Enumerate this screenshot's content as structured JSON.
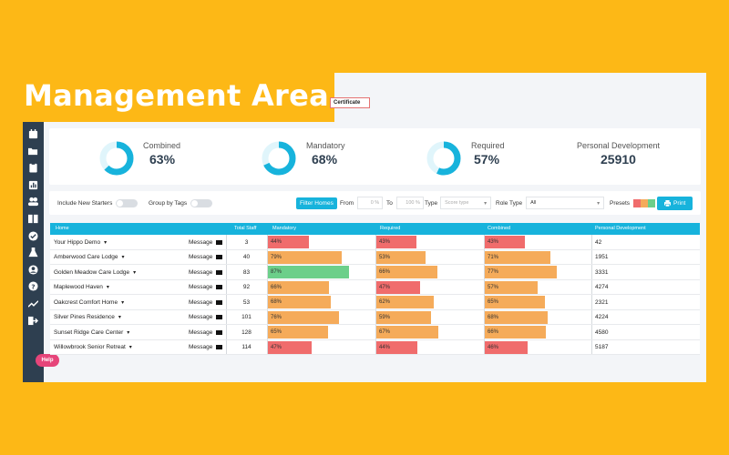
{
  "page": {
    "title": "Management Area",
    "certificate_btn": "Certificate",
    "help_label": "Help"
  },
  "sidebar": {
    "items": [
      "calendar-icon",
      "folder-icon",
      "clipboard-icon",
      "bar-chart-icon",
      "users-icon",
      "book-icon",
      "check-circle-icon",
      "flask-icon",
      "user-circle-icon",
      "question-icon",
      "trend-icon",
      "logout-icon"
    ]
  },
  "stats": [
    {
      "label": "Combined",
      "value": "63%",
      "pct": 63,
      "donut": true
    },
    {
      "label": "Mandatory",
      "value": "68%",
      "pct": 68,
      "donut": true
    },
    {
      "label": "Required",
      "value": "57%",
      "pct": 57,
      "donut": true
    },
    {
      "label": "Personal Development",
      "value": "25910",
      "donut": false
    }
  ],
  "filters": {
    "include_new_starters": "Include New Starters",
    "group_by_tags": "Group by Tags",
    "filter_homes": "Filter Homes",
    "from_label": "From",
    "from_value": "0 %",
    "to_label": "To",
    "to_value": "100 %",
    "type_label": "Type",
    "type_placeholder": "Score type",
    "role_type_label": "Role Type",
    "role_type_value": "All",
    "presets_label": "Presets",
    "print_label": "Print"
  },
  "table": {
    "headers": {
      "home": "Home",
      "total_staff": "Total Staff",
      "mandatory": "Mandatory",
      "required": "Required",
      "combined": "Combined",
      "personal_development": "Personal Development"
    },
    "message_label": "Message",
    "rows": [
      {
        "home": "Your Hippo Demo",
        "staff": "3",
        "mandatory": "44%",
        "mandatory_pct": 44,
        "required": "43%",
        "required_pct": 43,
        "combined": "43%",
        "combined_pct": 43,
        "pd": "42"
      },
      {
        "home": "Amberwood Care Lodge",
        "staff": "40",
        "mandatory": "79%",
        "mandatory_pct": 79,
        "required": "53%",
        "required_pct": 53,
        "combined": "71%",
        "combined_pct": 71,
        "pd": "1951"
      },
      {
        "home": "Golden Meadow Care Lodge",
        "staff": "83",
        "mandatory": "87%",
        "mandatory_pct": 87,
        "required": "66%",
        "required_pct": 66,
        "combined": "77%",
        "combined_pct": 77,
        "pd": "3331"
      },
      {
        "home": "Maplewood Haven",
        "staff": "92",
        "mandatory": "66%",
        "mandatory_pct": 66,
        "required": "47%",
        "required_pct": 47,
        "combined": "57%",
        "combined_pct": 57,
        "pd": "4274"
      },
      {
        "home": "Oakcrest Comfort Home",
        "staff": "53",
        "mandatory": "68%",
        "mandatory_pct": 68,
        "required": "62%",
        "required_pct": 62,
        "combined": "65%",
        "combined_pct": 65,
        "pd": "2321"
      },
      {
        "home": "Silver Pines Residence",
        "staff": "101",
        "mandatory": "76%",
        "mandatory_pct": 76,
        "required": "59%",
        "required_pct": 59,
        "combined": "68%",
        "combined_pct": 68,
        "pd": "4224"
      },
      {
        "home": "Sunset Ridge Care Center",
        "staff": "128",
        "mandatory": "65%",
        "mandatory_pct": 65,
        "required": "67%",
        "required_pct": 67,
        "combined": "66%",
        "combined_pct": 66,
        "pd": "4580"
      },
      {
        "home": "Willowbrook Senior Retreat",
        "staff": "114",
        "mandatory": "47%",
        "mandatory_pct": 47,
        "required": "44%",
        "required_pct": 44,
        "combined": "46%",
        "combined_pct": 46,
        "pd": "5187"
      }
    ]
  },
  "colors": {
    "accent": "#17b3dc",
    "brand_yellow": "#FDB816",
    "low": "#f06c6c",
    "mid": "#f5ab5a",
    "high": "#6ccf8a",
    "sidebar": "#2e3f50",
    "help": "#e6457a"
  }
}
